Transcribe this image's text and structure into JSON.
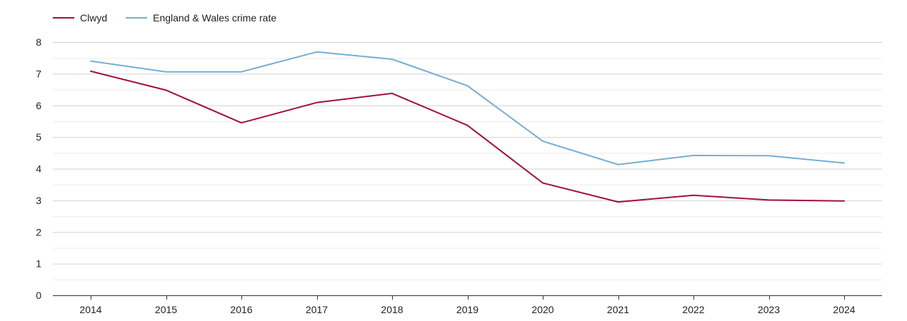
{
  "chart_data": {
    "type": "line",
    "title": "",
    "xlabel": "",
    "ylabel": "",
    "x": [
      "2014",
      "2015",
      "2016",
      "2017",
      "2018",
      "2019",
      "2020",
      "2021",
      "2022",
      "2023",
      "2024"
    ],
    "ylim": [
      0,
      8
    ],
    "yticks": [
      0,
      1,
      2,
      3,
      4,
      5,
      6,
      7,
      8
    ],
    "grid": true,
    "legend_position": "top-left",
    "series": [
      {
        "name": "Clwyd",
        "color": "#a50f3c",
        "values": [
          7.08,
          6.48,
          5.45,
          6.09,
          6.38,
          5.37,
          3.55,
          2.95,
          3.16,
          3.01,
          2.98
        ]
      },
      {
        "name": "England & Wales crime rate",
        "color": "#74afd3",
        "values": [
          7.4,
          7.06,
          7.06,
          7.69,
          7.46,
          6.62,
          4.87,
          4.13,
          4.42,
          4.41,
          4.18
        ]
      }
    ]
  }
}
